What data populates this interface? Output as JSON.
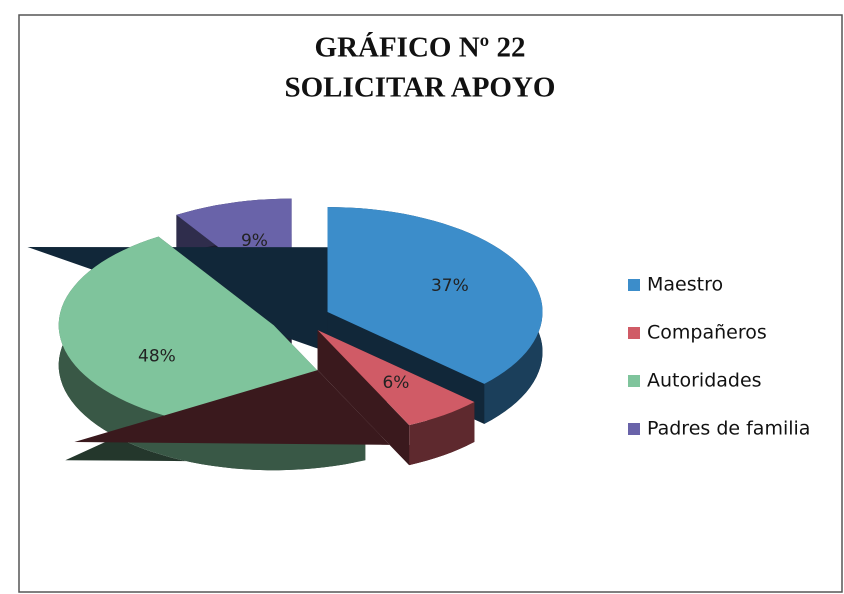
{
  "chart_data": {
    "type": "pie3d",
    "title": "GRÁFICO Nº 22",
    "subtitle": "SOLICITAR APOYO",
    "categories": [
      "Maestro",
      "Compañeros",
      "Autoridades",
      "Padres de familia"
    ],
    "values": [
      37,
      6,
      48,
      9
    ],
    "value_labels": [
      "37%",
      "6%",
      "48%",
      "9%"
    ],
    "colors": [
      "#3c8dca",
      "#d05b66",
      "#7fc49c",
      "#6963a9"
    ],
    "legend": "right"
  }
}
